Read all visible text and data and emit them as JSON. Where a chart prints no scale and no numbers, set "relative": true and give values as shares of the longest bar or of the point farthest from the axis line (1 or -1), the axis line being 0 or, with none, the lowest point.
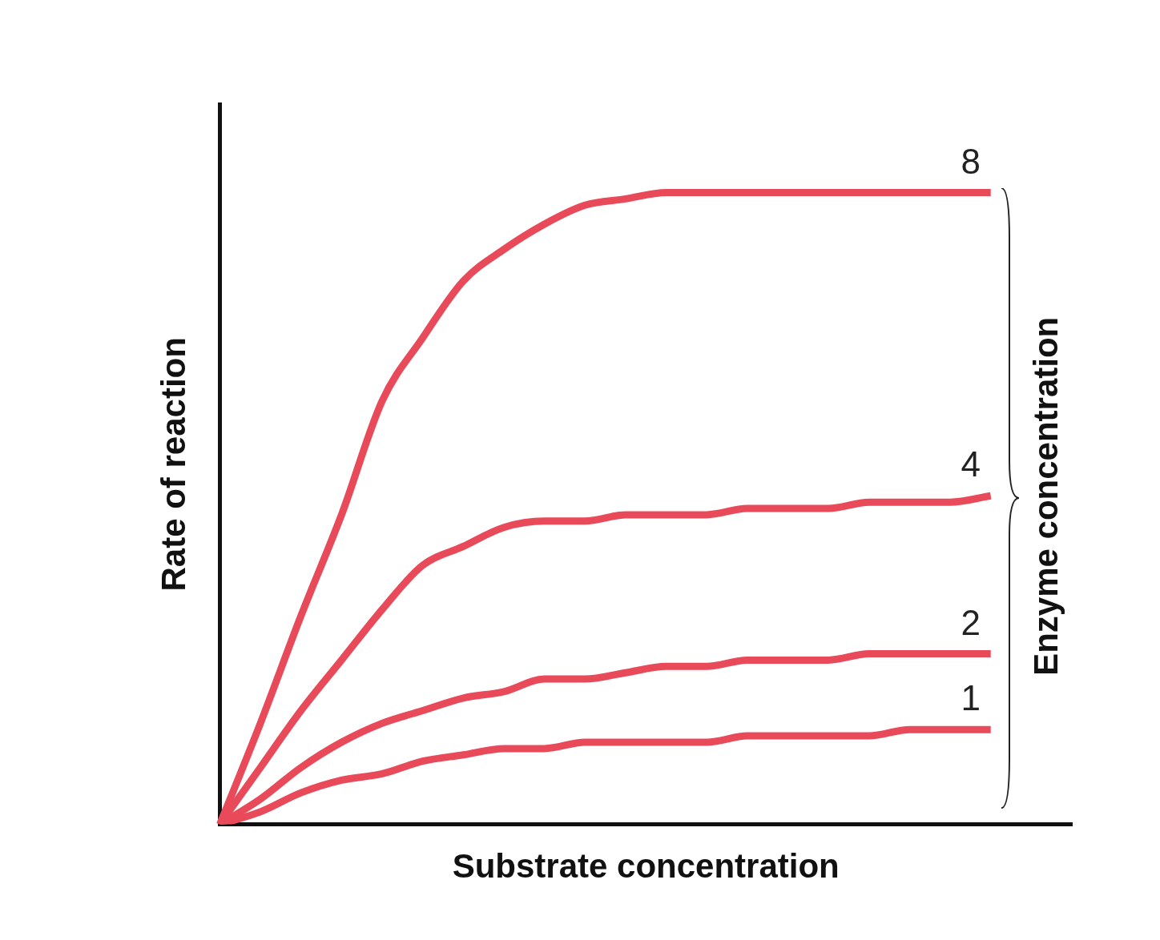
{
  "chart_data": {
    "type": "line",
    "relative": true,
    "xlabel": "Substrate concentration",
    "ylabel": "Rate of reaction",
    "legend_title": "Enzyme concentration",
    "legend": false,
    "grid": false,
    "marker": "none",
    "line_style": "solid",
    "tick_labels": false,
    "categories": [
      null,
      null,
      null,
      null,
      null,
      null,
      null,
      null,
      null,
      null,
      null,
      null,
      null,
      null,
      null,
      null,
      null,
      null,
      null,
      null,
      null,
      null
    ],
    "series": [
      {
        "name": "8",
        "color": "#e84a5a",
        "values": [
          0,
          0.16,
          0.33,
          0.49,
          0.67,
          0.77,
          0.86,
          0.91,
          0.95,
          0.98,
          0.99,
          1,
          1,
          1,
          1,
          1,
          1,
          1,
          1,
          1,
          null,
          null
        ]
      },
      {
        "name": "4",
        "color": "#e84a5a",
        "values": [
          0,
          0.09,
          0.18,
          0.26,
          0.34,
          0.41,
          0.44,
          0.47,
          0.48,
          0.48,
          0.49,
          0.49,
          0.49,
          0.5,
          0.5,
          0.5,
          0.51,
          0.51,
          0.51,
          0.52,
          null,
          null
        ]
      },
      {
        "name": "2",
        "color": "#e84a5a",
        "values": [
          0,
          0.04,
          0.09,
          0.13,
          0.16,
          0.18,
          0.2,
          0.21,
          0.23,
          0.23,
          0.24,
          0.25,
          0.25,
          0.26,
          0.26,
          0.26,
          0.27,
          0.27,
          0.27,
          0.27,
          null,
          null
        ]
      },
      {
        "name": "1",
        "color": "#e84a5a",
        "values": [
          0,
          0.02,
          0.05,
          0.07,
          0.08,
          0.1,
          0.11,
          0.12,
          0.12,
          0.13,
          0.13,
          0.13,
          0.13,
          0.14,
          0.14,
          0.14,
          0.14,
          0.15,
          0.15,
          0.15,
          null,
          null
        ]
      }
    ]
  }
}
